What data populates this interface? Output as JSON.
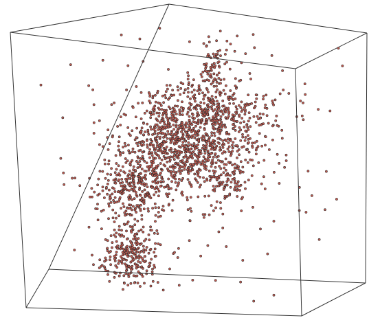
{
  "chart_data": {
    "type": "scatter",
    "dimensions": 3,
    "title": "",
    "xlabel": "",
    "ylabel": "",
    "zlabel": "",
    "xlim": [
      0,
      1
    ],
    "ylim": [
      0,
      1
    ],
    "zlim": [
      0,
      1
    ],
    "axes_visible": false,
    "bounding_box": true,
    "grid": false,
    "legend": "none",
    "point_fill_color": "#c05a50",
    "point_edge_color": "#2a2a2a",
    "box_color": "#333333",
    "clusters": [
      {
        "center": [
          0.4,
          0.58,
          0.5
        ],
        "spread": [
          0.09,
          0.1,
          0.09
        ],
        "count": 650
      },
      {
        "center": [
          0.28,
          0.4,
          0.5
        ],
        "spread": [
          0.06,
          0.08,
          0.07
        ],
        "count": 330
      },
      {
        "center": [
          0.58,
          0.7,
          0.5
        ],
        "spread": [
          0.1,
          0.06,
          0.08
        ],
        "count": 330
      },
      {
        "center": [
          0.3,
          0.13,
          0.5
        ],
        "spread": [
          0.05,
          0.05,
          0.05
        ],
        "count": 240
      },
      {
        "center": [
          0.52,
          0.55,
          0.5
        ],
        "spread": [
          0.07,
          0.06,
          0.07
        ],
        "count": 200
      },
      {
        "center": [
          0.52,
          0.88,
          0.5
        ],
        "spread": [
          0.02,
          0.05,
          0.03
        ],
        "count": 70
      },
      {
        "center": [
          0.62,
          0.45,
          0.5
        ],
        "spread": [
          0.04,
          0.05,
          0.05
        ],
        "count": 90
      },
      {
        "center": [
          0.5,
          0.5,
          0.5
        ],
        "spread": [
          0.25,
          0.26,
          0.25
        ],
        "count": 190
      }
    ]
  }
}
